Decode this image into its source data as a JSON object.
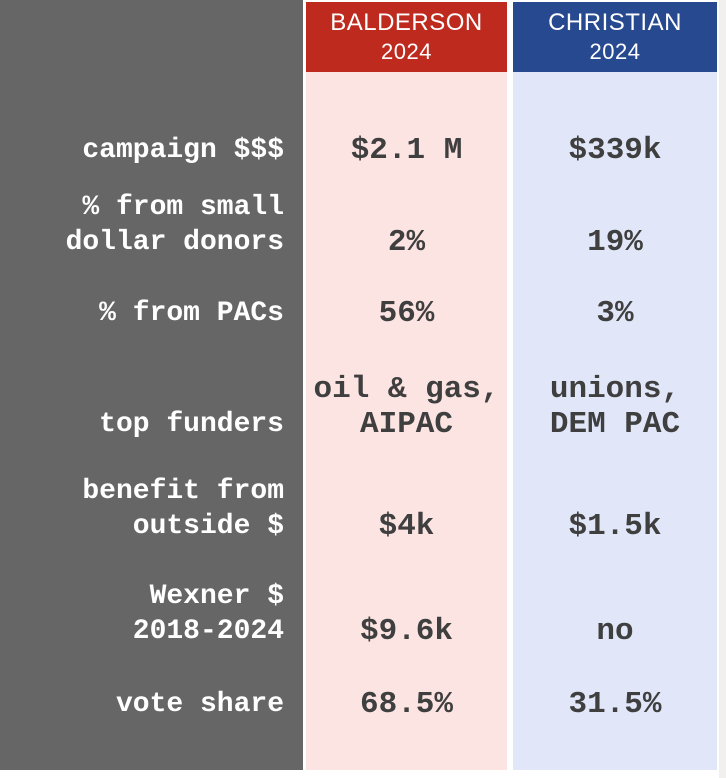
{
  "header": {
    "balderson": {
      "name": "BALDERSON",
      "year": "2024"
    },
    "christian": {
      "name": "CHRISTIAN",
      "year": "2024"
    }
  },
  "rows": [
    {
      "label": "campaign $$$",
      "balderson": "$2.1 M",
      "christian": "$339k"
    },
    {
      "label": "% from small\ndollar donors",
      "balderson": "2%",
      "christian": "19%"
    },
    {
      "label": "% from PACs",
      "balderson": "56%",
      "christian": "3%"
    },
    {
      "label": "top funders",
      "balderson": "oil & gas,\nAIPAC",
      "christian": "unions,\nDEM PAC"
    },
    {
      "label": "benefit from\noutside $",
      "balderson": "$4k",
      "christian": "$1.5k"
    },
    {
      "label": "Wexner $\n2018-2024",
      "balderson": "$9.6k",
      "christian": "no"
    },
    {
      "label": "vote share",
      "balderson": "68.5%",
      "christian": "31.5%"
    }
  ],
  "colors": {
    "gray": "#666666",
    "red": "#be2a1e",
    "blue": "#274990",
    "pink": "#fce4e3",
    "lavender": "#e1e7f8",
    "ink": "#3f3f3f",
    "edge": "#f1f0ee",
    "bg": "#ffffff"
  },
  "chart_data": {
    "type": "table",
    "title": "Campaign finance comparison: Balderson 2024 vs Christian 2024",
    "columns": [
      "",
      "BALDERSON 2024",
      "CHRISTIAN 2024"
    ],
    "rows": [
      [
        "campaign $$$",
        "$2.1 M",
        "$339k"
      ],
      [
        "% from small dollar donors",
        "2%",
        "19%"
      ],
      [
        "% from PACs",
        "56%",
        "3%"
      ],
      [
        "top funders",
        "oil & gas, AIPAC",
        "unions, DEM PAC"
      ],
      [
        "benefit from outside $",
        "$4k",
        "$1.5k"
      ],
      [
        "Wexner $ 2018-2024",
        "$9.6k",
        "no"
      ],
      [
        "vote share",
        "68.5%",
        "31.5%"
      ]
    ],
    "layout": {
      "label_column_bg": "#666666",
      "balderson_header_bg": "#be2a1e",
      "balderson_body_bg": "#fce4e3",
      "christian_header_bg": "#274990",
      "christian_body_bg": "#e1e7f8"
    }
  }
}
